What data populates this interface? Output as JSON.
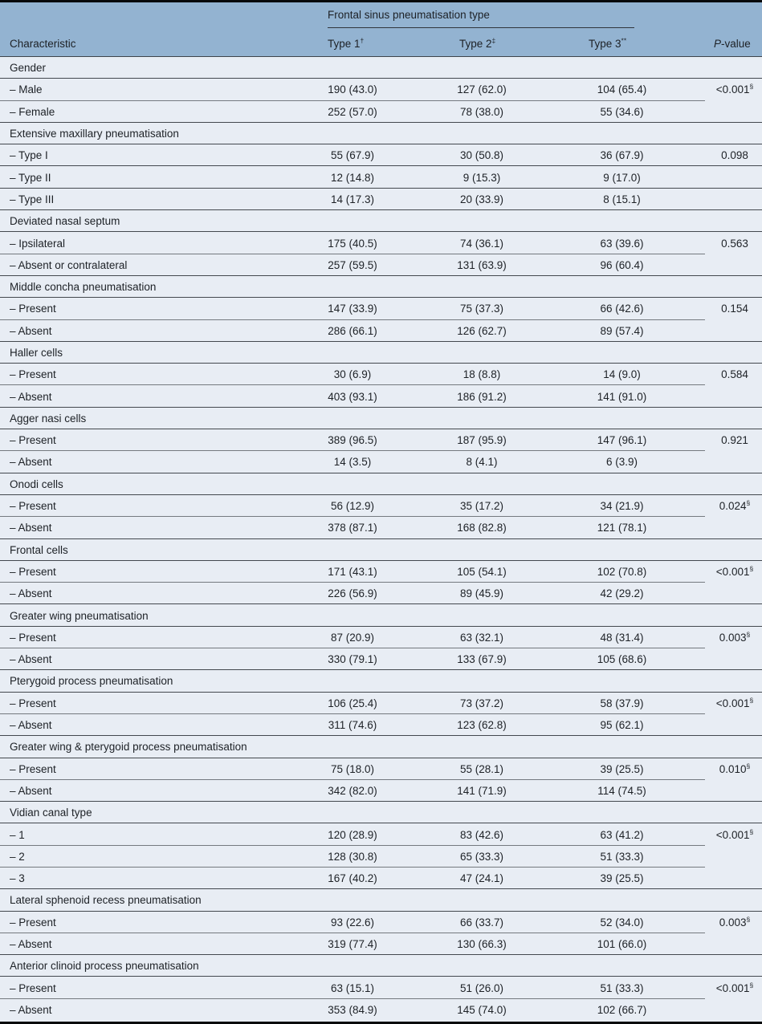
{
  "table": {
    "header": {
      "characteristic": "Characteristic",
      "span_label": "Frontal sinus pneumatisation type",
      "type1": "Type 1",
      "type1_sup": "†",
      "type2": "Type 2",
      "type2_sup": "‡",
      "type3": "Type 3",
      "type3_sup": "**",
      "pvalue_italic": "P",
      "pvalue_rest": "-value"
    },
    "colors": {
      "header_background": "#93b3d1",
      "body_background": "#e8edf4",
      "rule_dark": "#43484e",
      "rule_light": "#74797f",
      "border_black": "#07090b",
      "text": "#1d2126"
    },
    "groups": [
      {
        "name": "Gender",
        "rows": [
          {
            "label": "– Male",
            "values": [
              "190 (43.0)",
              "127 (62.0)",
              "104 (65.4)"
            ],
            "p": "<0.001",
            "p_sup": "§",
            "sep": "short"
          },
          {
            "label": "– Female",
            "values": [
              "252 (57.0)",
              "78 (38.0)",
              "55 (34.6)"
            ],
            "sep": "full"
          }
        ]
      },
      {
        "name": "Extensive maxillary pneumatisation",
        "rows": [
          {
            "label": "– Type I",
            "values": [
              "55 (67.9)",
              "30 (50.8)",
              "36 (67.9)"
            ],
            "p": "0.098",
            "sep": "full"
          },
          {
            "label": "– Type II",
            "values": [
              "12 (14.8)",
              "9 (15.3)",
              "9 (17.0)"
            ],
            "sep": "full"
          },
          {
            "label": "– Type III",
            "values": [
              "14 (17.3)",
              "20 (33.9)",
              "8 (15.1)"
            ],
            "sep": "full"
          }
        ]
      },
      {
        "name": "Deviated nasal septum",
        "rows": [
          {
            "label": "– Ipsilateral",
            "values": [
              "175 (40.5)",
              "74 (36.1)",
              "63 (39.6)"
            ],
            "p": "0.563",
            "sep": "short"
          },
          {
            "label": "– Absent or contralateral",
            "values": [
              "257 (59.5)",
              "131 (63.9)",
              "96 (60.4)"
            ],
            "sep": "full"
          }
        ]
      },
      {
        "name": "Middle concha pneumatisation",
        "rows": [
          {
            "label": "– Present",
            "values": [
              "147 (33.9)",
              "75 (37.3)",
              "66 (42.6)"
            ],
            "p": "0.154",
            "sep": "short"
          },
          {
            "label": "– Absent",
            "values": [
              "286 (66.1)",
              "126 (62.7)",
              "89 (57.4)"
            ],
            "sep": "full"
          }
        ]
      },
      {
        "name": "Haller cells",
        "rows": [
          {
            "label": "– Present",
            "values": [
              "30 (6.9)",
              "18 (8.8)",
              "14 (9.0)"
            ],
            "p": "0.584",
            "sep": "short"
          },
          {
            "label": "– Absent",
            "values": [
              "403 (93.1)",
              "186 (91.2)",
              "141 (91.0)"
            ],
            "sep": "full"
          }
        ]
      },
      {
        "name": "Agger nasi cells",
        "rows": [
          {
            "label": "– Present",
            "values": [
              "389 (96.5)",
              "187 (95.9)",
              "147 (96.1)"
            ],
            "p": "0.921",
            "sep": "short"
          },
          {
            "label": "– Absent",
            "values": [
              "14 (3.5)",
              "8 (4.1)",
              "6 (3.9)"
            ],
            "sep": "full"
          }
        ]
      },
      {
        "name": "Onodi cells",
        "rows": [
          {
            "label": "– Present",
            "values": [
              "56 (12.9)",
              "35 (17.2)",
              "34 (21.9)"
            ],
            "p": "0.024",
            "p_sup": "§",
            "sep": "short"
          },
          {
            "label": "– Absent",
            "values": [
              "378 (87.1)",
              "168 (82.8)",
              "121 (78.1)"
            ],
            "sep": "full"
          }
        ]
      },
      {
        "name": "Frontal cells",
        "rows": [
          {
            "label": "– Present",
            "values": [
              "171 (43.1)",
              "105 (54.1)",
              "102 (70.8)"
            ],
            "p": "<0.001",
            "p_sup": "§",
            "sep": "short"
          },
          {
            "label": "– Absent",
            "values": [
              "226 (56.9)",
              "89 (45.9)",
              "42 (29.2)"
            ],
            "sep": "full"
          }
        ]
      },
      {
        "name": "Greater wing pneumatisation",
        "rows": [
          {
            "label": "– Present",
            "values": [
              "87 (20.9)",
              "63 (32.1)",
              "48 (31.4)"
            ],
            "p": "0.003",
            "p_sup": "§",
            "sep": "short"
          },
          {
            "label": "– Absent",
            "values": [
              "330 (79.1)",
              "133 (67.9)",
              "105 (68.6)"
            ],
            "sep": "full"
          }
        ]
      },
      {
        "name": "Pterygoid process pneumatisation",
        "rows": [
          {
            "label": "– Present",
            "values": [
              "106 (25.4)",
              "73 (37.2)",
              "58 (37.9)"
            ],
            "p": "<0.001",
            "p_sup": "§",
            "sep": "short"
          },
          {
            "label": "– Absent",
            "values": [
              "311 (74.6)",
              "123 (62.8)",
              "95 (62.1)"
            ],
            "sep": "full"
          }
        ]
      },
      {
        "name": "Greater wing & pterygoid process pneumatisation",
        "rows": [
          {
            "label": "– Present",
            "values": [
              "75 (18.0)",
              "55 (28.1)",
              "39 (25.5)"
            ],
            "p": "0.010",
            "p_sup": "§",
            "sep": "short"
          },
          {
            "label": "– Absent",
            "values": [
              "342 (82.0)",
              "141 (71.9)",
              "114 (74.5)"
            ],
            "sep": "full"
          }
        ]
      },
      {
        "name": "Vidian canal type",
        "rows": [
          {
            "label": "– 1",
            "values": [
              "120 (28.9)",
              "83 (42.6)",
              "63 (41.2)"
            ],
            "p": "<0.001",
            "p_sup": "§",
            "sep": "short"
          },
          {
            "label": "– 2",
            "values": [
              "128 (30.8)",
              "65 (33.3)",
              "51 (33.3)"
            ],
            "sep": "short"
          },
          {
            "label": "– 3",
            "values": [
              "167 (40.2)",
              "47 (24.1)",
              "39 (25.5)"
            ],
            "sep": "full"
          }
        ]
      },
      {
        "name": "Lateral sphenoid recess pneumatisation",
        "rows": [
          {
            "label": "– Present",
            "values": [
              "93 (22.6)",
              "66 (33.7)",
              "52 (34.0)"
            ],
            "p": "0.003",
            "p_sup": "§",
            "sep": "short"
          },
          {
            "label": "– Absent",
            "values": [
              "319 (77.4)",
              "130 (66.3)",
              "101 (66.0)"
            ],
            "sep": "full"
          }
        ]
      },
      {
        "name": "Anterior clinoid process pneumatisation",
        "rows": [
          {
            "label": "– Present",
            "values": [
              "63 (15.1)",
              "51 (26.0)",
              "51 (33.3)"
            ],
            "p": "<0.001",
            "p_sup": "§",
            "sep": "short"
          },
          {
            "label": "– Absent",
            "values": [
              "353 (84.9)",
              "145 (74.0)",
              "102 (66.7)"
            ],
            "sep": "none"
          }
        ]
      }
    ]
  }
}
